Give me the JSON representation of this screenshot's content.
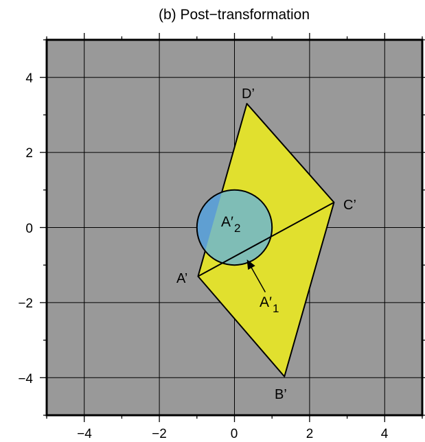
{
  "title": "(b) Post−transformation",
  "x_tick_labels": [
    "−4",
    "−2",
    "0",
    "2",
    "4"
  ],
  "y_tick_labels": [
    "4",
    "2",
    "0",
    "−2",
    "−4"
  ],
  "colors": {
    "background": "#999999",
    "quad_fill": "#e1e02e",
    "circle_fill_inside": "#7fbdb6",
    "circle_fill_outside": "#5f9fd2",
    "stroke": "#000000"
  },
  "vertices": [
    {
      "label": "A’",
      "x": -0.97,
      "y": -1.3
    },
    {
      "label": "B’",
      "x": 1.33,
      "y": -3.97
    },
    {
      "label": "C’",
      "x": 2.65,
      "y": 0.67
    },
    {
      "label": "D’",
      "x": 0.33,
      "y": 3.3
    }
  ],
  "circle": {
    "cx": 0,
    "cy": 0,
    "r": 1
  },
  "labels": {
    "a2_main": "A′",
    "a2_sub": "2",
    "a1_main": "A′",
    "a1_sub": "1"
  }
}
